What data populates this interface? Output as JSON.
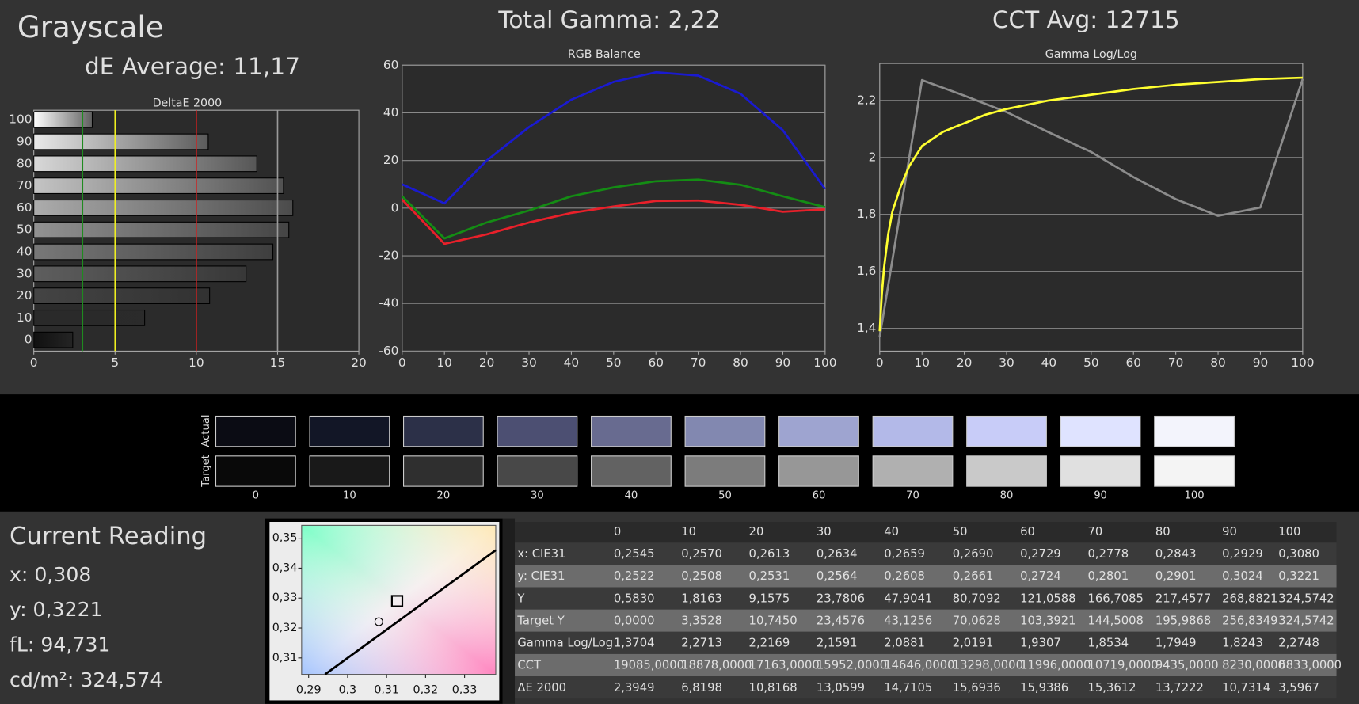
{
  "header": {
    "title": "Grayscale",
    "de_average": "dE Average: 11,17",
    "total_gamma": "Total Gamma: 2,22",
    "cct_avg": "CCT Avg: 12715"
  },
  "chart_data": [
    {
      "type": "hbar",
      "title": "DeltaE 2000",
      "categories": [
        "0",
        "10",
        "20",
        "30",
        "40",
        "50",
        "60",
        "70",
        "80",
        "90",
        "100"
      ],
      "values": [
        2.3949,
        6.8198,
        10.8168,
        13.0599,
        14.7105,
        15.6936,
        15.9386,
        15.3612,
        13.7222,
        10.7314,
        3.5967
      ],
      "colors": [
        "#101010",
        "#2a2a2a",
        "#444444",
        "#5e5e5e",
        "#787878",
        "#929292",
        "#acacac",
        "#c4c4c4",
        "#d8d8d8",
        "#eaeaea",
        "#ffffff"
      ],
      "xlim": [
        0,
        20
      ],
      "xticks": [
        0,
        5,
        10,
        15,
        20
      ],
      "reference_lines": [
        {
          "value": 3,
          "color": "#1f8a1f"
        },
        {
          "value": 5,
          "color": "#f0f020"
        },
        {
          "value": 10,
          "color": "#d02020"
        },
        {
          "value": 15,
          "color": "#9a9a9a"
        }
      ]
    },
    {
      "type": "line",
      "title": "RGB Balance",
      "x": [
        0,
        10,
        20,
        30,
        40,
        50,
        60,
        70,
        80,
        90,
        100
      ],
      "xlim": [
        0,
        100
      ],
      "xticks": [
        0,
        10,
        20,
        30,
        40,
        50,
        60,
        70,
        80,
        90,
        100
      ],
      "ylim": [
        -60,
        60
      ],
      "yticks": [
        -60,
        -40,
        -20,
        0,
        20,
        40,
        60
      ],
      "grid": true,
      "series": [
        {
          "color": "#e8202a",
          "values": [
            3.6,
            -15,
            -11,
            -6,
            -2,
            0.7,
            3,
            3.2,
            1.4,
            -1.5,
            -0.5
          ]
        },
        {
          "color": "#148c14",
          "values": [
            5,
            -12.7,
            -6,
            -1,
            5,
            8.7,
            11.3,
            12,
            9.8,
            5,
            0.4
          ]
        },
        {
          "color": "#1a1ad0",
          "values": [
            10,
            2,
            20,
            34,
            45.5,
            53,
            57,
            55.6,
            48,
            32.7,
            8
          ]
        }
      ]
    },
    {
      "type": "line",
      "title": "Gamma Log/Log",
      "xlim": [
        0,
        100
      ],
      "xticks": [
        0,
        10,
        20,
        30,
        40,
        50,
        60,
        70,
        80,
        90,
        100
      ],
      "ylim": [
        1.32,
        2.33
      ],
      "yticks": [
        {
          "value": 1.4,
          "label": "1,4"
        },
        {
          "value": 1.6,
          "label": "1,6"
        },
        {
          "value": 1.8,
          "label": "1,8"
        },
        2,
        {
          "value": 2.2,
          "label": "2,2"
        }
      ],
      "grid": true,
      "series": [
        {
          "color": "#8c8c8c",
          "x": [
            0,
            10,
            20,
            30,
            40,
            50,
            60,
            70,
            80,
            90,
            100
          ],
          "values": [
            1.3704,
            2.2713,
            2.2169,
            2.1591,
            2.0881,
            2.0191,
            1.9307,
            1.8534,
            1.7949,
            1.8243,
            2.2748
          ]
        },
        {
          "color": "#ffff30",
          "x": [
            0,
            0.5,
            1,
            2,
            3,
            5,
            7,
            10,
            15,
            20,
            25,
            30,
            40,
            50,
            60,
            70,
            80,
            90,
            100
          ],
          "values": [
            1.39,
            1.52,
            1.61,
            1.73,
            1.81,
            1.9,
            1.97,
            2.04,
            2.09,
            2.12,
            2.15,
            2.17,
            2.2,
            2.22,
            2.24,
            2.255,
            2.265,
            2.275,
            2.28
          ]
        }
      ]
    },
    {
      "type": "scatter",
      "xlim": [
        0.2882,
        0.338
      ],
      "ylim": [
        0.3045,
        0.3543
      ],
      "xticks": [
        {
          "value": 0.29,
          "label": "0,29"
        },
        {
          "value": 0.3,
          "label": "0,3"
        },
        {
          "value": 0.31,
          "label": "0,31"
        },
        {
          "value": 0.32,
          "label": "0,32"
        },
        {
          "value": 0.33,
          "label": "0,33"
        }
      ],
      "yticks": [
        {
          "value": 0.31,
          "label": "0,31"
        },
        {
          "value": 0.32,
          "label": "0,32"
        },
        {
          "value": 0.33,
          "label": "0,33"
        },
        {
          "value": 0.34,
          "label": "0,34"
        },
        {
          "value": 0.35,
          "label": "0,35"
        }
      ],
      "series": [
        {
          "color": "#000000",
          "marker": "line",
          "x": [
            0.2942,
            0.313,
            0.338
          ],
          "values": [
            0.3045,
            0.3223,
            0.346
          ]
        },
        {
          "color": "#000000",
          "marker": "square",
          "x": [
            0.3127
          ],
          "values": [
            0.329
          ]
        },
        {
          "color": "#000000",
          "marker": "circle",
          "x": [
            0.308
          ],
          "values": [
            0.3221
          ]
        }
      ]
    }
  ],
  "swatches": {
    "rows": [
      "Actual",
      "Target"
    ],
    "labels": [
      "0",
      "10",
      "20",
      "30",
      "40",
      "50",
      "60",
      "70",
      "80",
      "90",
      "100"
    ],
    "actual_colors": [
      "#0b0c14",
      "#121626",
      "#2c3048",
      "#4c4f72",
      "#686b90",
      "#8288b0",
      "#9ea4d0",
      "#b3b9e8",
      "#c8ccf8",
      "#dfe3ff",
      "#f3f4fc"
    ],
    "target_colors": [
      "#090909",
      "#191919",
      "#2f2f2f",
      "#484848",
      "#626262",
      "#7c7c7c",
      "#979797",
      "#b0b0b0",
      "#c9c9c9",
      "#e0e0e0",
      "#f4f4f4"
    ]
  },
  "current_reading": {
    "title": "Current Reading",
    "lines": [
      "x: 0,308",
      "y: 0,3221",
      "fL: 94,731",
      "cd/m²: 324,574"
    ]
  },
  "table": {
    "columns": [
      "0",
      "10",
      "20",
      "30",
      "40",
      "50",
      "60",
      "70",
      "80",
      "90",
      "100"
    ],
    "rows": [
      [
        "x: CIE31",
        "0,2545",
        "0,2570",
        "0,2613",
        "0,2634",
        "0,2659",
        "0,2690",
        "0,2729",
        "0,2778",
        "0,2843",
        "0,2929",
        "0,3080"
      ],
      [
        "y: CIE31",
        "0,2522",
        "0,2508",
        "0,2531",
        "0,2564",
        "0,2608",
        "0,2661",
        "0,2724",
        "0,2801",
        "0,2901",
        "0,3024",
        "0,3221"
      ],
      [
        "Y",
        "0,5830",
        "1,8163",
        "9,1575",
        "23,7806",
        "47,9041",
        "80,7092",
        "121,0588",
        "166,7085",
        "217,4577",
        "268,8821",
        "324,5742"
      ],
      [
        "Target Y",
        "0,0000",
        "3,3528",
        "10,7450",
        "23,4576",
        "43,1256",
        "70,0628",
        "103,3921",
        "144,5008",
        "195,9868",
        "256,8349",
        "324,5742"
      ],
      [
        "Gamma Log/Log",
        "1,3704",
        "2,2713",
        "2,2169",
        "2,1591",
        "2,0881",
        "2,0191",
        "1,9307",
        "1,8534",
        "1,7949",
        "1,8243",
        "2,2748"
      ],
      [
        "CCT",
        "19085,0000",
        "18878,0000",
        "17163,0000",
        "15952,0000",
        "14646,0000",
        "13298,0000",
        "11996,0000",
        "10719,0000",
        "9435,0000",
        "8230,0000",
        "6833,0000"
      ],
      [
        "ΔE 2000",
        "2,3949",
        "6,8198",
        "10,8168",
        "13,0599",
        "14,7105",
        "15,6936",
        "15,9386",
        "15,3612",
        "13,7222",
        "10,7314",
        "3,5967"
      ]
    ]
  }
}
